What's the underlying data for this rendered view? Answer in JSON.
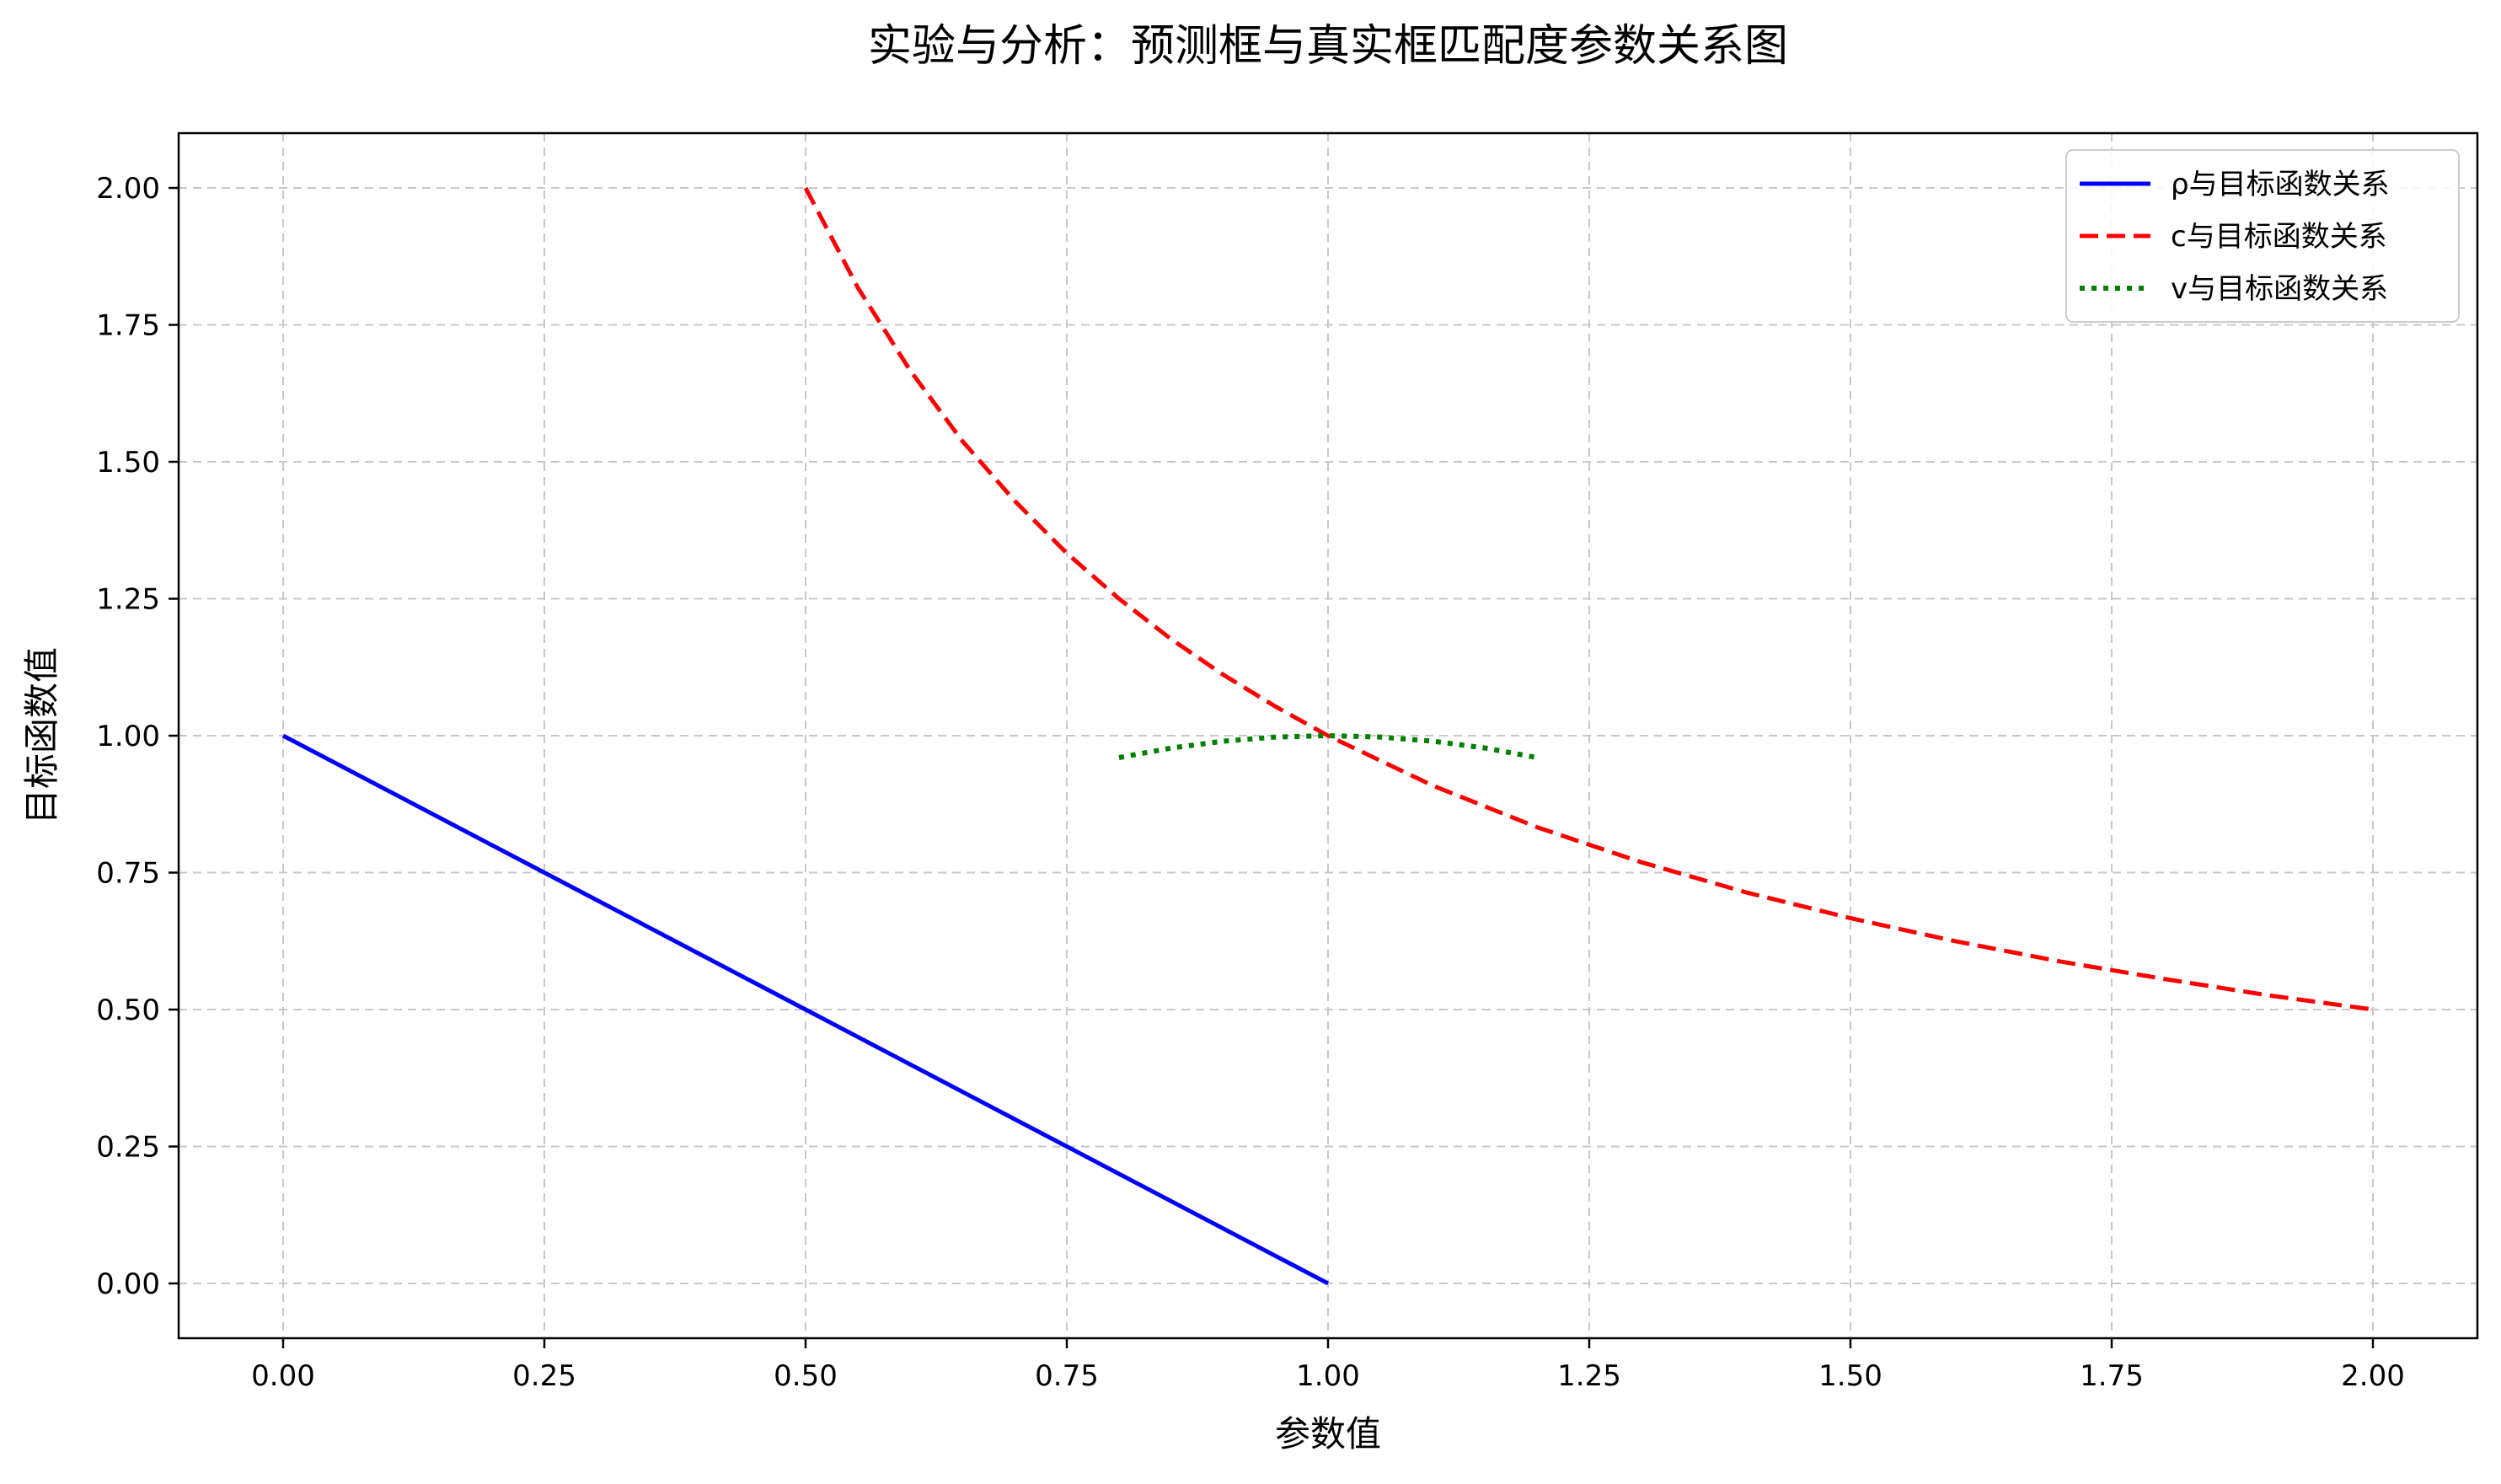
{
  "chart_data": {
    "type": "line",
    "title": "实验与分析：预测框与真实框匹配度参数关系图",
    "xlabel": "参数值",
    "ylabel": "目标函数值",
    "xlim": [
      -0.1,
      2.1
    ],
    "ylim": [
      -0.1,
      2.1
    ],
    "xticks": [
      "0.00",
      "0.25",
      "0.50",
      "0.75",
      "1.00",
      "1.25",
      "1.50",
      "1.75",
      "2.00"
    ],
    "yticks": [
      "0.00",
      "0.25",
      "0.50",
      "0.75",
      "1.00",
      "1.25",
      "1.50",
      "1.75",
      "2.00"
    ],
    "grid": true,
    "legend": "top-right",
    "series": [
      {
        "name": "ρ与目标函数关系",
        "color": "#0000ff",
        "style": "solid",
        "x": [
          0.0,
          0.25,
          0.5,
          0.75,
          1.0
        ],
        "y": [
          1.0,
          0.75,
          0.5,
          0.25,
          0.0
        ]
      },
      {
        "name": "c与目标函数关系",
        "color": "#ff0000",
        "style": "dashed",
        "x": [
          0.5,
          0.55,
          0.6,
          0.65,
          0.7,
          0.75,
          0.8,
          0.85,
          0.9,
          0.95,
          1.0,
          1.1,
          1.2,
          1.3,
          1.4,
          1.5,
          1.6,
          1.7,
          1.8,
          1.9,
          2.0
        ],
        "y": [
          2.0,
          1.818,
          1.667,
          1.538,
          1.429,
          1.333,
          1.25,
          1.176,
          1.111,
          1.053,
          1.0,
          0.909,
          0.833,
          0.769,
          0.714,
          0.667,
          0.625,
          0.588,
          0.556,
          0.526,
          0.5
        ]
      },
      {
        "name": "v与目标函数关系",
        "color": "#008000",
        "style": "dotted",
        "x": [
          0.8,
          0.85,
          0.9,
          0.95,
          1.0,
          1.05,
          1.1,
          1.15,
          1.2
        ],
        "y": [
          0.96,
          0.9775,
          0.99,
          0.9975,
          1.0,
          0.9975,
          0.99,
          0.9775,
          0.96
        ]
      }
    ]
  }
}
